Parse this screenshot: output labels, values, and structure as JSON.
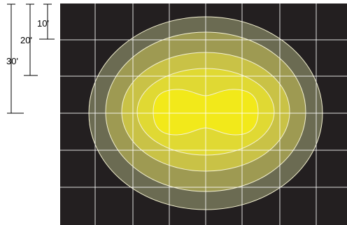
{
  "scale": {
    "labels": [
      "10'",
      "20'",
      "30'"
    ]
  },
  "colors": {
    "background": "#231f20",
    "grid": "#ffffff",
    "ring_outer": "#6b6b52",
    "ring_2": "#9e9a52",
    "ring_3": "#c9c246",
    "ring_4": "#e0d933",
    "hotspot": "#f2e91a"
  }
}
